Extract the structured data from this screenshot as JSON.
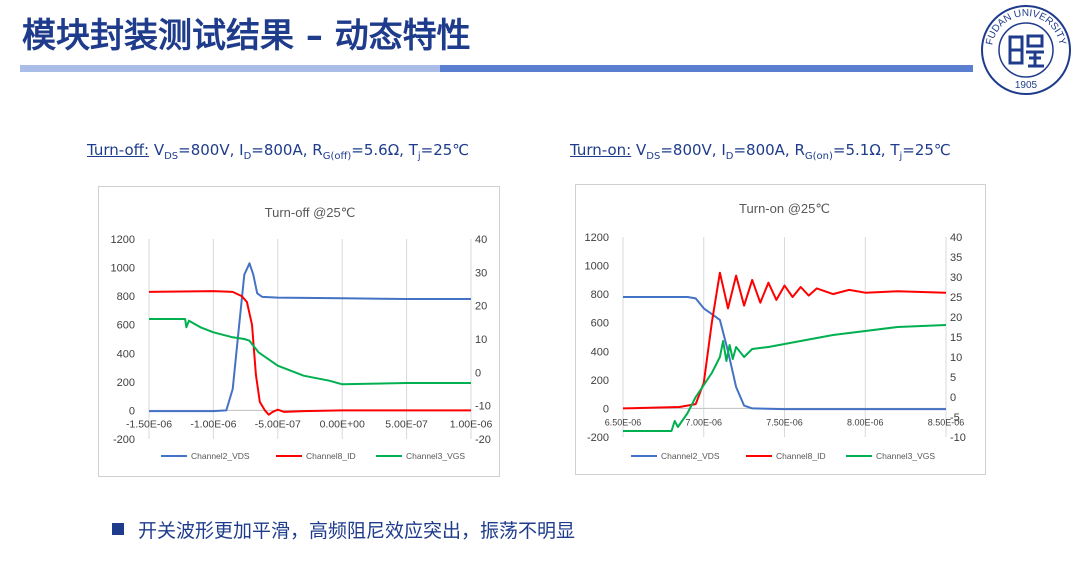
{
  "page": {
    "title": "模块封装测试结果 – 动态特性",
    "bullet": "开关波形更加平滑，高频阻尼效应突出，振荡不明显",
    "logo_text": "FUDAN UNIVERSITY",
    "logo_year": "1905",
    "colors": {
      "title": "#1f3c8c",
      "accent_bar": "#5b7fd0"
    }
  },
  "conditions": {
    "left": {
      "label": "Turn-off:",
      "vds": "=800V, I",
      "id": "=800A, R",
      "rg_sub": "G(off)",
      "rg": "=5.6Ω, T",
      "tj": "=25℃"
    },
    "right": {
      "label": "Turn-on:",
      "vds": "=800V, I",
      "id": "=800A, R",
      "rg_sub": "G(on)",
      "rg": "=5.1Ω, T",
      "tj": "=25℃"
    }
  },
  "chart_data": [
    {
      "type": "line",
      "title": "Turn-off @25℃",
      "x_ticks": [
        "-1.50E-06",
        "-1.00E-06",
        "-5.00E-07",
        "0.00E+00",
        "5.00E-07",
        "1.00E-06"
      ],
      "x_values": [
        -1.5e-06,
        -1e-06,
        -5e-07,
        0.0,
        5e-07,
        1e-06
      ],
      "xlim": [
        -1.5e-06,
        1e-06
      ],
      "ylim": [
        -200,
        1200
      ],
      "y_ticks": [
        "-200",
        "0",
        "200",
        "400",
        "600",
        "800",
        "1000",
        "1200"
      ],
      "y2lim": [
        -20,
        40
      ],
      "y2_ticks": [
        "-20",
        "-10",
        "0",
        "10",
        "20",
        "30",
        "40"
      ],
      "legend_position": "bottom",
      "series": [
        {
          "name": "Channel2_VDS",
          "color": "#4472c4",
          "axis": "left",
          "points": [
            [
              -1.5e-06,
              -5
            ],
            [
              -1.2e-06,
              -5
            ],
            [
              -1e-06,
              -5
            ],
            [
              -9e-07,
              0
            ],
            [
              -8.5e-07,
              150
            ],
            [
              -8e-07,
              600
            ],
            [
              -7.6e-07,
              950
            ],
            [
              -7.2e-07,
              1030
            ],
            [
              -6.9e-07,
              950
            ],
            [
              -6.6e-07,
              820
            ],
            [
              -6.2e-07,
              795
            ],
            [
              -5e-07,
              790
            ],
            [
              0.0,
              785
            ],
            [
              5e-07,
              780
            ],
            [
              1e-06,
              780
            ]
          ]
        },
        {
          "name": "Channel8_ID",
          "color": "#ff0000",
          "axis": "left",
          "points": [
            [
              -1.5e-06,
              830
            ],
            [
              -1e-06,
              835
            ],
            [
              -8.5e-07,
              830
            ],
            [
              -7.8e-07,
              800
            ],
            [
              -7.4e-07,
              760
            ],
            [
              -7e-07,
              600
            ],
            [
              -6.7e-07,
              250
            ],
            [
              -6.4e-07,
              60
            ],
            [
              -6e-07,
              0
            ],
            [
              -5.7e-07,
              -30
            ],
            [
              -5.4e-07,
              -10
            ],
            [
              -5e-07,
              5
            ],
            [
              -4.5e-07,
              -10
            ],
            [
              -3e-07,
              -5
            ],
            [
              0.0,
              0
            ],
            [
              5e-07,
              0
            ],
            [
              1e-06,
              0
            ]
          ]
        },
        {
          "name": "Channel3_VGS",
          "color": "#00b050",
          "axis": "right",
          "points": [
            [
              -1.5e-06,
              16
            ],
            [
              -1.22e-06,
              16
            ],
            [
              -1.21e-06,
              13.5
            ],
            [
              -1.19e-06,
              15.5
            ],
            [
              -1.1e-06,
              13.5
            ],
            [
              -1e-06,
              12
            ],
            [
              -8.5e-07,
              10.5
            ],
            [
              -7.6e-07,
              10
            ],
            [
              -7.2e-07,
              9.5
            ],
            [
              -6.5e-07,
              6
            ],
            [
              -5e-07,
              2
            ],
            [
              -3e-07,
              -1
            ],
            [
              -1e-07,
              -2.5
            ],
            [
              0.0,
              -3.6
            ],
            [
              5e-07,
              -3.2
            ],
            [
              1e-06,
              -3.2
            ]
          ]
        }
      ]
    },
    {
      "type": "line",
      "title": "Turn-on @25℃",
      "x_ticks": [
        "6.50E-06",
        "7.00E-06",
        "7.50E-06",
        "8.00E-06",
        "8.50E-06"
      ],
      "x_values": [
        6.5e-06,
        7e-06,
        7.5e-06,
        8e-06,
        8.5e-06
      ],
      "xlim": [
        6.5e-06,
        8.5e-06
      ],
      "ylim": [
        -200,
        1200
      ],
      "y_ticks": [
        "-200",
        "0",
        "200",
        "400",
        "600",
        "800",
        "1000",
        "1200"
      ],
      "y2lim": [
        -10,
        40
      ],
      "y2_ticks": [
        "-10",
        "-5",
        "0",
        "5",
        "10",
        "15",
        "20",
        "25",
        "30",
        "35",
        "40"
      ],
      "legend_position": "bottom",
      "series": [
        {
          "name": "Channel2_VDS",
          "color": "#4472c4",
          "axis": "left",
          "points": [
            [
              6.5e-06,
              780
            ],
            [
              6.9e-06,
              780
            ],
            [
              6.95e-06,
              770
            ],
            [
              7e-06,
              700
            ],
            [
              7.05e-06,
              660
            ],
            [
              7.1e-06,
              620
            ],
            [
              7.15e-06,
              400
            ],
            [
              7.2e-06,
              150
            ],
            [
              7.25e-06,
              20
            ],
            [
              7.3e-06,
              0
            ],
            [
              7.5e-06,
              -5
            ],
            [
              8e-06,
              -5
            ],
            [
              8.5e-06,
              -5
            ]
          ]
        },
        {
          "name": "Channel8_ID",
          "color": "#ff0000",
          "axis": "left",
          "points": [
            [
              6.5e-06,
              0
            ],
            [
              6.85e-06,
              10
            ],
            [
              6.95e-06,
              30
            ],
            [
              7e-06,
              180
            ],
            [
              7.05e-06,
              600
            ],
            [
              7.1e-06,
              950
            ],
            [
              7.15e-06,
              700
            ],
            [
              7.2e-06,
              930
            ],
            [
              7.25e-06,
              720
            ],
            [
              7.3e-06,
              900
            ],
            [
              7.35e-06,
              740
            ],
            [
              7.4e-06,
              880
            ],
            [
              7.45e-06,
              760
            ],
            [
              7.5e-06,
              860
            ],
            [
              7.55e-06,
              780
            ],
            [
              7.6e-06,
              850
            ],
            [
              7.65e-06,
              790
            ],
            [
              7.7e-06,
              840
            ],
            [
              7.8e-06,
              800
            ],
            [
              7.9e-06,
              830
            ],
            [
              8e-06,
              810
            ],
            [
              8.2e-06,
              820
            ],
            [
              8.5e-06,
              810
            ]
          ]
        },
        {
          "name": "Channel3_VGS",
          "color": "#00b050",
          "axis": "right",
          "points": [
            [
              6.5e-06,
              -8.5
            ],
            [
              6.8e-06,
              -8.5
            ],
            [
              6.82e-06,
              -6
            ],
            [
              6.84e-06,
              -7.5
            ],
            [
              6.9e-06,
              -4
            ],
            [
              6.95e-06,
              0
            ],
            [
              7e-06,
              3
            ],
            [
              7.05e-06,
              6
            ],
            [
              7.1e-06,
              10
            ],
            [
              7.12e-06,
              14
            ],
            [
              7.14e-06,
              9
            ],
            [
              7.16e-06,
              13
            ],
            [
              7.18e-06,
              9.5
            ],
            [
              7.2e-06,
              12.5
            ],
            [
              7.25e-06,
              10
            ],
            [
              7.3e-06,
              12
            ],
            [
              7.4e-06,
              12.5
            ],
            [
              7.6e-06,
              14
            ],
            [
              7.8e-06,
              15.5
            ],
            [
              8e-06,
              16.5
            ],
            [
              8.2e-06,
              17.5
            ],
            [
              8.5e-06,
              18
            ]
          ]
        }
      ]
    }
  ]
}
